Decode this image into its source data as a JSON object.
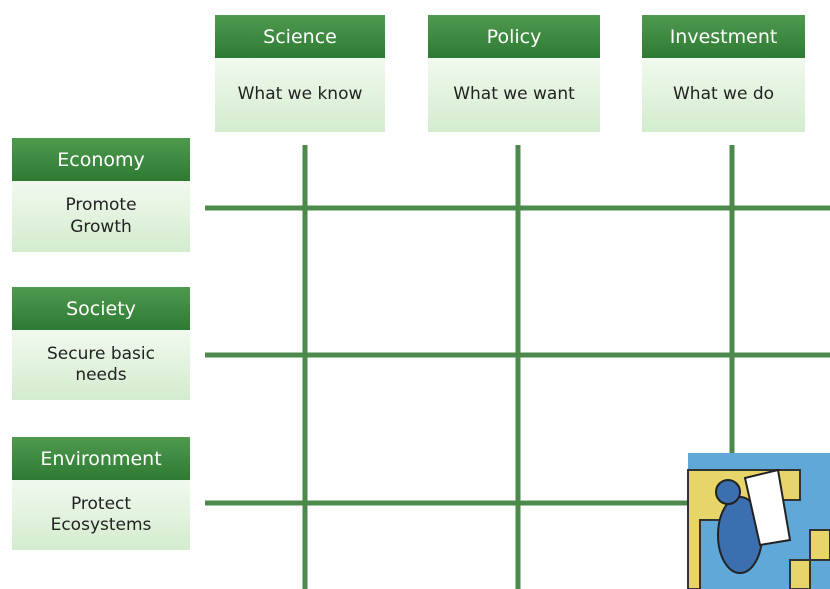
{
  "columns": [
    {
      "title": "Science",
      "subtitle": "What we know"
    },
    {
      "title": "Policy",
      "subtitle": "What we want"
    },
    {
      "title": "Investment",
      "subtitle": "What we do"
    }
  ],
  "rows": [
    {
      "title": "Economy",
      "subtitle": "Promote Growth"
    },
    {
      "title": "Society",
      "subtitle": "Secure basic needs"
    },
    {
      "title": "Environment",
      "subtitle": "Protect Ecosystems"
    }
  ]
}
